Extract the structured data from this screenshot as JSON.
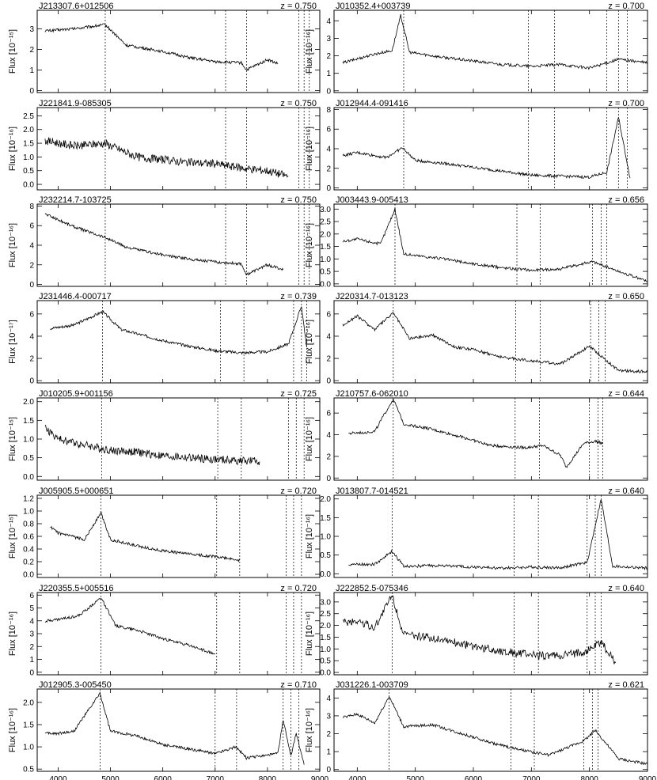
{
  "figure": {
    "ylabel": "Flux",
    "xticks": [
      "4000",
      "5000",
      "6000",
      "7000",
      "8000",
      "9000"
    ]
  },
  "chart_data": [
    {
      "type": "line",
      "name": "J213307.6+012506",
      "z": "z = 0.750",
      "unit": "[10⁻¹⁵]",
      "yticks": [
        "0",
        "1",
        "2",
        "3"
      ],
      "ylim": [
        -0.1,
        3.9
      ],
      "xlim": [
        3600,
        9000
      ],
      "vlines": [
        4900,
        7200,
        7600,
        8600,
        8700,
        8800
      ],
      "points": [
        [
          3750,
          2.9
        ],
        [
          4300,
          3.0
        ],
        [
          4600,
          3.1
        ],
        [
          4900,
          3.2
        ],
        [
          5300,
          2.2
        ],
        [
          6000,
          1.9
        ],
        [
          6500,
          1.6
        ],
        [
          7000,
          1.4
        ],
        [
          7500,
          1.35
        ],
        [
          7600,
          1.0
        ],
        [
          8000,
          1.5
        ],
        [
          8200,
          1.3
        ]
      ]
    },
    {
      "type": "line",
      "name": "J010352.4+003739",
      "z": "z = 0.700",
      "unit": "[10⁻¹⁶]",
      "yticks": [
        "0",
        "1",
        "2",
        "3",
        "4"
      ],
      "ylim": [
        -0.1,
        4.6
      ],
      "xlim": [
        3600,
        9000
      ],
      "vlines": [
        4800,
        6950,
        7400,
        8300,
        8500,
        8650
      ],
      "points": [
        [
          3750,
          1.6
        ],
        [
          4300,
          2.1
        ],
        [
          4600,
          2.3
        ],
        [
          4750,
          4.3
        ],
        [
          4900,
          2.2
        ],
        [
          5500,
          1.9
        ],
        [
          6000,
          1.7
        ],
        [
          6500,
          1.5
        ],
        [
          7000,
          1.4
        ],
        [
          7500,
          1.5
        ],
        [
          8000,
          1.3
        ],
        [
          8500,
          1.8
        ],
        [
          9000,
          1.6
        ]
      ]
    },
    {
      "type": "line",
      "name": "J221841.9-085305",
      "z": "z = 0.750",
      "unit": "[10⁻¹⁶]",
      "yticks": [
        "0.0",
        "0.5",
        "1.0",
        "1.5",
        "2.0",
        "2.5"
      ],
      "ylim": [
        -0.2,
        2.8
      ],
      "xlim": [
        3600,
        9000
      ],
      "vlines": [
        4900,
        7200,
        7600,
        8600,
        8700,
        8800
      ],
      "points": [
        [
          3750,
          1.6
        ],
        [
          4300,
          1.4
        ],
        [
          4900,
          1.5
        ],
        [
          5500,
          1.0
        ],
        [
          6000,
          0.9
        ],
        [
          6500,
          0.8
        ],
        [
          7000,
          0.75
        ],
        [
          7500,
          0.6
        ],
        [
          8000,
          0.5
        ],
        [
          8400,
          0.3
        ]
      ]
    },
    {
      "type": "line",
      "name": "J012944.4-091416",
      "z": "z = 0.700",
      "unit": "[10⁻¹⁶]",
      "yticks": [
        "0",
        "2",
        "4",
        "6",
        "8"
      ],
      "ylim": [
        -0.2,
        8.2
      ],
      "xlim": [
        3600,
        9000
      ],
      "vlines": [
        4800,
        6950,
        7400,
        8300,
        8500,
        8650
      ],
      "points": [
        [
          3750,
          3.3
        ],
        [
          4000,
          3.6
        ],
        [
          4500,
          3.1
        ],
        [
          4780,
          4.1
        ],
        [
          5000,
          2.8
        ],
        [
          5500,
          2.5
        ],
        [
          6000,
          2.1
        ],
        [
          6500,
          1.7
        ],
        [
          7000,
          1.3
        ],
        [
          7500,
          1.2
        ],
        [
          8000,
          1.1
        ],
        [
          8300,
          1.6
        ],
        [
          8500,
          7.2
        ],
        [
          8700,
          1.0
        ]
      ]
    },
    {
      "type": "line",
      "name": "J232214.7-103725",
      "z": "z = 0.750",
      "unit": "[10⁻¹⁶]",
      "yticks": [
        "0",
        "2",
        "4",
        "6",
        "8"
      ],
      "ylim": [
        -0.2,
        8.2
      ],
      "xlim": [
        3600,
        9000
      ],
      "vlines": [
        4900,
        7200,
        7600,
        8600,
        8700,
        8800
      ],
      "points": [
        [
          3750,
          7.2
        ],
        [
          4300,
          5.9
        ],
        [
          4900,
          4.8
        ],
        [
          5300,
          3.8
        ],
        [
          6000,
          3.0
        ],
        [
          6500,
          2.6
        ],
        [
          7000,
          2.3
        ],
        [
          7500,
          2.1
        ],
        [
          7600,
          1.0
        ],
        [
          8000,
          2.0
        ],
        [
          8300,
          1.5
        ]
      ]
    },
    {
      "type": "line",
      "name": "J003443.9-005413",
      "z": "z = 0.656",
      "unit": "[10⁻¹⁶]",
      "yticks": [
        "0.0",
        "0.5",
        "1.0",
        "1.5",
        "2.0",
        "2.5",
        "3.0"
      ],
      "ylim": [
        -0.1,
        3.2
      ],
      "xlim": [
        3600,
        9000
      ],
      "vlines": [
        4650,
        6750,
        7150,
        8050,
        8200,
        8300
      ],
      "points": [
        [
          3750,
          1.7
        ],
        [
          4000,
          1.8
        ],
        [
          4400,
          1.6
        ],
        [
          4650,
          3.0
        ],
        [
          4800,
          1.2
        ],
        [
          5500,
          1.0
        ],
        [
          6000,
          0.8
        ],
        [
          6500,
          0.65
        ],
        [
          7000,
          0.55
        ],
        [
          7500,
          0.6
        ],
        [
          8050,
          0.9
        ],
        [
          8500,
          0.5
        ],
        [
          9000,
          0.1
        ]
      ]
    },
    {
      "type": "line",
      "name": "J231446.4-000717",
      "z": "z = 0.739",
      "unit": "[10⁻¹⁷]",
      "yticks": [
        "0",
        "2",
        "4",
        "6"
      ],
      "ylim": [
        -0.2,
        7.2
      ],
      "xlim": [
        3600,
        9000
      ],
      "vlines": [
        4850,
        7100,
        7550,
        8500,
        8650,
        8750
      ],
      "points": [
        [
          3850,
          4.7
        ],
        [
          4300,
          5.0
        ],
        [
          4850,
          6.2
        ],
        [
          5200,
          4.6
        ],
        [
          6000,
          3.6
        ],
        [
          6500,
          3.1
        ],
        [
          7000,
          2.7
        ],
        [
          7500,
          2.5
        ],
        [
          8000,
          2.6
        ],
        [
          8400,
          3.3
        ],
        [
          8650,
          6.7
        ],
        [
          8750,
          3.0
        ]
      ]
    },
    {
      "type": "line",
      "name": "J220314.7-013123",
      "z": "z = 0.650",
      "unit": "[10⁻¹⁶]",
      "yticks": [
        "0",
        "2",
        "4",
        "6"
      ],
      "ylim": [
        -0.2,
        7.2
      ],
      "xlim": [
        3600,
        9000
      ],
      "vlines": [
        4620,
        6730,
        7150,
        8020,
        8160,
        8270
      ],
      "points": [
        [
          3750,
          5.0
        ],
        [
          4000,
          5.8
        ],
        [
          4300,
          4.6
        ],
        [
          4620,
          6.1
        ],
        [
          4900,
          3.8
        ],
        [
          5300,
          4.1
        ],
        [
          5700,
          3.0
        ],
        [
          6000,
          2.8
        ],
        [
          6500,
          2.1
        ],
        [
          7000,
          1.8
        ],
        [
          7500,
          1.5
        ],
        [
          8000,
          3.1
        ],
        [
          8500,
          0.9
        ],
        [
          9000,
          0.8
        ]
      ]
    },
    {
      "type": "line",
      "name": "J010205.9+001156",
      "z": "z = 0.725",
      "unit": "[10⁻¹⁵]",
      "yticks": [
        "0.0",
        "0.5",
        "1.0",
        "1.5",
        "2.0"
      ],
      "ylim": [
        -0.1,
        2.1
      ],
      "xlim": [
        3600,
        9000
      ],
      "vlines": [
        4830,
        7050,
        7500,
        8400,
        8550,
        8700
      ],
      "points": [
        [
          3750,
          1.3
        ],
        [
          4000,
          1.0
        ],
        [
          4500,
          0.85
        ],
        [
          5000,
          0.7
        ],
        [
          5500,
          0.65
        ],
        [
          6000,
          0.55
        ],
        [
          6500,
          0.5
        ],
        [
          7000,
          0.45
        ],
        [
          7500,
          0.42
        ],
        [
          7850,
          0.4
        ]
      ]
    },
    {
      "type": "line",
      "name": "J210757.6-062010",
      "z": "z = 0.644",
      "unit": "[10⁻¹⁶]",
      "yticks": [
        "0",
        "2",
        "4",
        "6"
      ],
      "ylim": [
        -0.2,
        7.4
      ],
      "xlim": [
        3600,
        9000
      ],
      "vlines": [
        4620,
        6720,
        7140,
        8000,
        8150,
        8230
      ],
      "points": [
        [
          3850,
          4.1
        ],
        [
          4300,
          4.3
        ],
        [
          4620,
          7.3
        ],
        [
          4800,
          5.0
        ],
        [
          5200,
          4.6
        ],
        [
          5800,
          3.8
        ],
        [
          6300,
          3.0
        ],
        [
          6900,
          2.8
        ],
        [
          7200,
          3.0
        ],
        [
          7500,
          2.1
        ],
        [
          7600,
          1.0
        ],
        [
          7900,
          3.2
        ],
        [
          8100,
          3.4
        ],
        [
          8230,
          3.2
        ]
      ]
    },
    {
      "type": "line",
      "name": "J005905.5+000651",
      "z": "z = 0.720",
      "unit": "[10⁻¹⁵]",
      "yticks": [
        "0.0",
        "0.2",
        "0.4",
        "0.6",
        "0.8",
        "1.0",
        "1.2"
      ],
      "ylim": [
        -0.05,
        1.25
      ],
      "xlim": [
        3600,
        9000
      ],
      "vlines": [
        4820,
        7030,
        7470,
        8360,
        8500,
        8650
      ],
      "points": [
        [
          3850,
          0.75
        ],
        [
          4000,
          0.65
        ],
        [
          4500,
          0.55
        ],
        [
          4820,
          0.97
        ],
        [
          5000,
          0.55
        ],
        [
          5500,
          0.45
        ],
        [
          6000,
          0.37
        ],
        [
          6500,
          0.32
        ],
        [
          7000,
          0.28
        ],
        [
          7470,
          0.22
        ]
      ]
    },
    {
      "type": "line",
      "name": "J013807.7-014521",
      "z": "z = 0.640",
      "unit": "[10⁻¹⁶]",
      "yticks": [
        "0.0",
        "0.5",
        "1.0",
        "1.5",
        "2.0"
      ],
      "ylim": [
        -0.1,
        2.1
      ],
      "xlim": [
        3600,
        9000
      ],
      "vlines": [
        4600,
        6700,
        7120,
        7960,
        8100,
        8200
      ],
      "points": [
        [
          3850,
          0.25
        ],
        [
          4300,
          0.25
        ],
        [
          4600,
          0.6
        ],
        [
          4800,
          0.2
        ],
        [
          5500,
          0.22
        ],
        [
          6000,
          0.18
        ],
        [
          6500,
          0.15
        ],
        [
          7000,
          0.18
        ],
        [
          7500,
          0.16
        ],
        [
          7960,
          0.3
        ],
        [
          8200,
          2.0
        ],
        [
          8400,
          0.2
        ],
        [
          9000,
          0.15
        ]
      ]
    },
    {
      "type": "line",
      "name": "J220355.5+005516",
      "z": "z = 0.720",
      "unit": "[10⁻¹⁶]",
      "yticks": [
        "0",
        "1",
        "2",
        "3",
        "4",
        "5",
        "6"
      ],
      "ylim": [
        -0.2,
        6.2
      ],
      "xlim": [
        3600,
        9000
      ],
      "vlines": [
        4820,
        7030,
        7470,
        8360,
        8500,
        8650
      ],
      "points": [
        [
          3750,
          4.0
        ],
        [
          4000,
          4.1
        ],
        [
          4400,
          4.4
        ],
        [
          4820,
          5.8
        ],
        [
          5100,
          3.6
        ],
        [
          5500,
          3.3
        ],
        [
          6000,
          2.6
        ],
        [
          6500,
          2.1
        ],
        [
          7000,
          1.4
        ]
      ]
    },
    {
      "type": "line",
      "name": "J222852.5-075346",
      "z": "z = 0.640",
      "unit": "[10⁻¹⁶]",
      "yticks": [
        "0.0",
        "0.5",
        "1.0",
        "1.5",
        "2.0",
        "2.5",
        "3.0"
      ],
      "ylim": [
        -0.1,
        3.4
      ],
      "xlim": [
        3600,
        9000
      ],
      "vlines": [
        4600,
        6700,
        7120,
        7960,
        8100,
        8200
      ],
      "points": [
        [
          3750,
          2.1
        ],
        [
          4000,
          2.2
        ],
        [
          4300,
          1.9
        ],
        [
          4600,
          3.3
        ],
        [
          4800,
          1.6
        ],
        [
          5500,
          1.4
        ],
        [
          6000,
          1.1
        ],
        [
          6500,
          0.9
        ],
        [
          7000,
          0.75
        ],
        [
          7500,
          0.7
        ],
        [
          7960,
          0.9
        ],
        [
          8200,
          1.3
        ],
        [
          8450,
          0.4
        ]
      ]
    },
    {
      "type": "line",
      "name": "J012905.3-005450",
      "z": "z = 0.710",
      "unit": "[10⁻¹⁶]",
      "yticks": [
        "0.5",
        "1.0",
        "1.5",
        "2.0"
      ],
      "ylim": [
        0.45,
        2.3
      ],
      "xlim": [
        3600,
        9000
      ],
      "vlines": [
        4800,
        7000,
        7410,
        8300,
        8450,
        8600
      ],
      "points": [
        [
          3750,
          1.3
        ],
        [
          4000,
          1.3
        ],
        [
          4300,
          1.35
        ],
        [
          4800,
          2.2
        ],
        [
          5000,
          1.35
        ],
        [
          5500,
          1.25
        ],
        [
          6000,
          1.05
        ],
        [
          6500,
          0.95
        ],
        [
          7000,
          0.85
        ],
        [
          7400,
          1.0
        ],
        [
          7600,
          0.75
        ],
        [
          8200,
          0.85
        ],
        [
          8300,
          1.6
        ],
        [
          8450,
          0.8
        ],
        [
          8550,
          1.3
        ],
        [
          8700,
          0.6
        ]
      ]
    },
    {
      "type": "line",
      "name": "J031226.1-003709",
      "z": "z = 0.621",
      "unit": "[10⁻¹⁶]",
      "yticks": [
        "0",
        "1",
        "2",
        "3",
        "4"
      ],
      "ylim": [
        -0.1,
        4.5
      ],
      "xlim": [
        3600,
        9000
      ],
      "vlines": [
        4550,
        6650,
        7050,
        7900,
        8050,
        8150
      ],
      "points": [
        [
          3750,
          2.9
        ],
        [
          4000,
          3.1
        ],
        [
          4300,
          2.6
        ],
        [
          4550,
          4.1
        ],
        [
          4800,
          2.4
        ],
        [
          5300,
          2.5
        ],
        [
          5800,
          2.0
        ],
        [
          6300,
          1.5
        ],
        [
          6800,
          1.1
        ],
        [
          7300,
          0.8
        ],
        [
          7900,
          1.6
        ],
        [
          8100,
          2.2
        ],
        [
          8500,
          0.6
        ],
        [
          9000,
          0.3
        ]
      ]
    }
  ]
}
